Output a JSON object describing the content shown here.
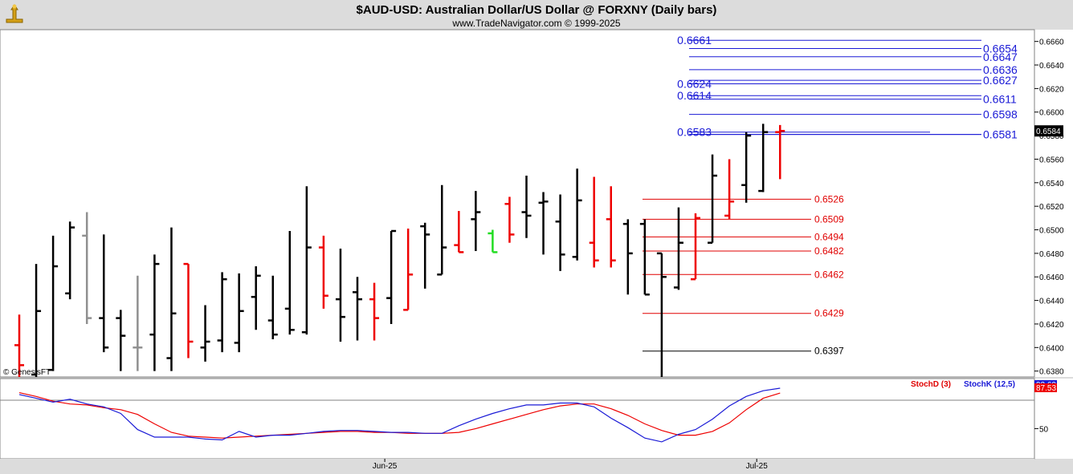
{
  "header": {
    "title": "$AUD-USD:  Australian Dollar/US Dollar @ FORXNY  (Daily bars)",
    "subtitle": "www.TradeNavigator.com © 1999-2025",
    "copyright": "© GenesisFT",
    "logo_icon": "trade-navigator-logo-icon"
  },
  "chart_data": [
    {
      "type": "ohlc",
      "name": "price",
      "ylim": [
        0.6375,
        0.667
      ],
      "yticks": [
        "0.6660",
        "0.6640",
        "0.6620",
        "0.6600",
        "0.6580",
        "0.6560",
        "0.6540",
        "0.6520",
        "0.6500",
        "0.6480",
        "0.6460",
        "0.6440",
        "0.6420",
        "0.6400",
        "0.6380"
      ],
      "last_price_label": "0.6584",
      "bar_colors": {
        "black": "#000000",
        "red": "#ee0000",
        "gray": "#909090",
        "green": "#22dd22"
      },
      "bars": [
        {
          "h": 0.6428,
          "l": 0.6375,
          "o": 0.6402,
          "c": 0.6385,
          "color": "red"
        },
        {
          "h": 0.6471,
          "l": 0.6375,
          "o": 0.6377,
          "c": 0.6431,
          "color": "black"
        },
        {
          "h": 0.6495,
          "l": 0.638,
          "o": 0.6381,
          "c": 0.6469,
          "color": "black"
        },
        {
          "h": 0.6507,
          "l": 0.6441,
          "o": 0.6446,
          "c": 0.6502,
          "color": "black"
        },
        {
          "h": 0.6515,
          "l": 0.642,
          "o": 0.6495,
          "c": 0.6425,
          "color": "gray"
        },
        {
          "h": 0.6496,
          "l": 0.6396,
          "o": 0.6425,
          "c": 0.64,
          "color": "black"
        },
        {
          "h": 0.6432,
          "l": 0.638,
          "o": 0.6425,
          "c": 0.641,
          "color": "black"
        },
        {
          "h": 0.6461,
          "l": 0.638,
          "o": 0.64,
          "c": 0.64,
          "color": "gray"
        },
        {
          "h": 0.6479,
          "l": 0.638,
          "o": 0.6411,
          "c": 0.6471,
          "color": "black"
        },
        {
          "h": 0.6502,
          "l": 0.638,
          "o": 0.6391,
          "c": 0.6429,
          "color": "black"
        },
        {
          "h": 0.6471,
          "l": 0.6391,
          "o": 0.6471,
          "c": 0.6405,
          "color": "red"
        },
        {
          "h": 0.6436,
          "l": 0.6388,
          "o": 0.64,
          "c": 0.6405,
          "color": "black"
        },
        {
          "h": 0.6464,
          "l": 0.6396,
          "o": 0.6406,
          "c": 0.6458,
          "color": "black"
        },
        {
          "h": 0.6463,
          "l": 0.6396,
          "o": 0.6404,
          "c": 0.6431,
          "color": "black"
        },
        {
          "h": 0.6469,
          "l": 0.6415,
          "o": 0.6443,
          "c": 0.6461,
          "color": "black"
        },
        {
          "h": 0.6461,
          "l": 0.6407,
          "o": 0.6423,
          "c": 0.6411,
          "color": "black"
        },
        {
          "h": 0.6499,
          "l": 0.6411,
          "o": 0.6433,
          "c": 0.6415,
          "color": "black"
        },
        {
          "h": 0.6537,
          "l": 0.6411,
          "o": 0.6413,
          "c": 0.6485,
          "color": "black"
        },
        {
          "h": 0.6495,
          "l": 0.6433,
          "o": 0.6485,
          "c": 0.6444,
          "color": "red"
        },
        {
          "h": 0.6484,
          "l": 0.6405,
          "o": 0.6441,
          "c": 0.6426,
          "color": "black"
        },
        {
          "h": 0.646,
          "l": 0.6406,
          "o": 0.6447,
          "c": 0.6441,
          "color": "black"
        },
        {
          "h": 0.6455,
          "l": 0.6406,
          "o": 0.6441,
          "c": 0.6425,
          "color": "red"
        },
        {
          "h": 0.6499,
          "l": 0.642,
          "o": 0.6442,
          "c": 0.6499,
          "color": "black"
        },
        {
          "h": 0.6501,
          "l": 0.6432,
          "o": 0.6432,
          "c": 0.6462,
          "color": "red"
        },
        {
          "h": 0.6506,
          "l": 0.645,
          "o": 0.6503,
          "c": 0.6496,
          "color": "black"
        },
        {
          "h": 0.6538,
          "l": 0.6462,
          "o": 0.6462,
          "c": 0.6485,
          "color": "black"
        },
        {
          "h": 0.6516,
          "l": 0.6481,
          "o": 0.6487,
          "c": 0.6481,
          "color": "red"
        },
        {
          "h": 0.6533,
          "l": 0.6482,
          "o": 0.6509,
          "c": 0.6515,
          "color": "black"
        },
        {
          "h": 0.65,
          "l": 0.6481,
          "o": 0.6497,
          "c": 0.6481,
          "color": "green"
        },
        {
          "h": 0.6528,
          "l": 0.6489,
          "o": 0.6522,
          "c": 0.6496,
          "color": "red"
        },
        {
          "h": 0.6546,
          "l": 0.6493,
          "o": 0.6515,
          "c": 0.6512,
          "color": "black"
        },
        {
          "h": 0.6532,
          "l": 0.6479,
          "o": 0.6523,
          "c": 0.6524,
          "color": "black"
        },
        {
          "h": 0.653,
          "l": 0.6465,
          "o": 0.6507,
          "c": 0.6479,
          "color": "black"
        },
        {
          "h": 0.6552,
          "l": 0.6474,
          "o": 0.6477,
          "c": 0.6525,
          "color": "black"
        },
        {
          "h": 0.6545,
          "l": 0.6468,
          "o": 0.6489,
          "c": 0.6474,
          "color": "red"
        },
        {
          "h": 0.6537,
          "l": 0.6468,
          "o": 0.6509,
          "c": 0.6474,
          "color": "red"
        },
        {
          "h": 0.6509,
          "l": 0.6445,
          "o": 0.6505,
          "c": 0.648,
          "color": "black"
        },
        {
          "h": 0.6509,
          "l": 0.6445,
          "o": 0.6505,
          "c": 0.6445,
          "color": "black"
        },
        {
          "h": 0.648,
          "l": 0.6375,
          "o": 0.648,
          "c": 0.646,
          "color": "black"
        },
        {
          "h": 0.6519,
          "l": 0.6449,
          "o": 0.6451,
          "c": 0.6489,
          "color": "black"
        },
        {
          "h": 0.6514,
          "l": 0.6458,
          "o": 0.6458,
          "c": 0.651,
          "color": "red"
        },
        {
          "h": 0.6564,
          "l": 0.6489,
          "o": 0.6489,
          "c": 0.6546,
          "color": "black"
        },
        {
          "h": 0.656,
          "l": 0.6509,
          "o": 0.6512,
          "c": 0.6524,
          "color": "red"
        },
        {
          "h": 0.6583,
          "l": 0.6523,
          "o": 0.6538,
          "c": 0.658,
          "color": "black"
        },
        {
          "h": 0.659,
          "l": 0.6532,
          "o": 0.6533,
          "c": 0.6583,
          "color": "black"
        },
        {
          "h": 0.6589,
          "l": 0.6543,
          "o": 0.6583,
          "c": 0.6584,
          "color": "red"
        }
      ],
      "levels": [
        {
          "label": "0.6661",
          "value": 0.6661,
          "color": "blue",
          "side": "left",
          "x0": 46,
          "x1": 61
        },
        {
          "label": "0.6654",
          "value": 0.6654,
          "color": "blue",
          "side": "right",
          "x0": 46,
          "x1": 61
        },
        {
          "label": "0.6647",
          "value": 0.6647,
          "color": "blue",
          "side": "right",
          "x0": 46,
          "x1": 61
        },
        {
          "label": "0.6636",
          "value": 0.6636,
          "color": "blue",
          "side": "right",
          "x0": 46,
          "x1": 61
        },
        {
          "label": "0.6624",
          "value": 0.6624,
          "color": "blue",
          "side": "left",
          "x0": 46,
          "x1": 61
        },
        {
          "label": "0.6627",
          "value": 0.6627,
          "color": "blue",
          "side": "right",
          "x0": 46,
          "x1": 61
        },
        {
          "label": "0.6614",
          "value": 0.6614,
          "color": "blue",
          "side": "left",
          "x0": 46,
          "x1": 61
        },
        {
          "label": "0.6611",
          "value": 0.6611,
          "color": "blue",
          "side": "right",
          "x0": 46,
          "x1": 61
        },
        {
          "label": "0.6598",
          "value": 0.6598,
          "color": "blue",
          "side": "right",
          "x0": 46,
          "x1": 61
        },
        {
          "label": "0.6583",
          "value": 0.6583,
          "color": "blue",
          "side": "left",
          "x0": 46,
          "x1": 55
        },
        {
          "label": "0.6581",
          "value": 0.6581,
          "color": "blue",
          "side": "right",
          "x0": 46,
          "x1": 61
        },
        {
          "label": "0.6526",
          "value": 0.6526,
          "color": "red",
          "side": "right",
          "x0": 38,
          "x1": 47
        },
        {
          "label": "0.6509",
          "value": 0.6509,
          "color": "red",
          "side": "right",
          "x0": 38,
          "x1": 47
        },
        {
          "label": "0.6494",
          "value": 0.6494,
          "color": "red",
          "side": "right",
          "x0": 38,
          "x1": 47
        },
        {
          "label": "0.6482",
          "value": 0.6482,
          "color": "red",
          "side": "right",
          "x0": 38,
          "x1": 47
        },
        {
          "label": "0.6462",
          "value": 0.6462,
          "color": "red",
          "side": "right",
          "x0": 38,
          "x1": 47
        },
        {
          "label": "0.6429",
          "value": 0.6429,
          "color": "red",
          "side": "right",
          "x0": 38,
          "x1": 47
        },
        {
          "label": "0.6397",
          "value": 0.6397,
          "color": "black",
          "side": "right",
          "x0": 38,
          "x1": 47
        }
      ],
      "x_tick_labels": [
        {
          "label": "Jun-25",
          "index": 22
        },
        {
          "label": "Jul-25",
          "index": 44
        }
      ]
    },
    {
      "type": "line",
      "name": "stochastic",
      "ylim": [
        0,
        100
      ],
      "yticks": [
        "50"
      ],
      "reference_line": 80,
      "last_values": {
        "stochk": "92.69",
        "stochd": "87.53"
      },
      "series": [
        {
          "name": "StochD (3)",
          "color": "#ee0000",
          "values": [
            88,
            84,
            79,
            76,
            75,
            72,
            70,
            65,
            55,
            46,
            42,
            41,
            40,
            41,
            42,
            43,
            44,
            45,
            46,
            47,
            47,
            46,
            46,
            45,
            45,
            45,
            46,
            50,
            55,
            60,
            65,
            70,
            74,
            76,
            76,
            71,
            64,
            55,
            48,
            43,
            43,
            47,
            56,
            70,
            82,
            87.53
          ]
        },
        {
          "name": "StochK (12,5)",
          "color": "#1a1ad6",
          "values": [
            86,
            82,
            78,
            81,
            76,
            73,
            66,
            49,
            41,
            41,
            41,
            39,
            38,
            47,
            41,
            43,
            43,
            45,
            47,
            48,
            48,
            47,
            46,
            46,
            45,
            45,
            53,
            60,
            66,
            71,
            75,
            75,
            77,
            77,
            73,
            61,
            51,
            40,
            36,
            44,
            49,
            60,
            74,
            84,
            90,
            92.69
          ]
        }
      ]
    }
  ]
}
